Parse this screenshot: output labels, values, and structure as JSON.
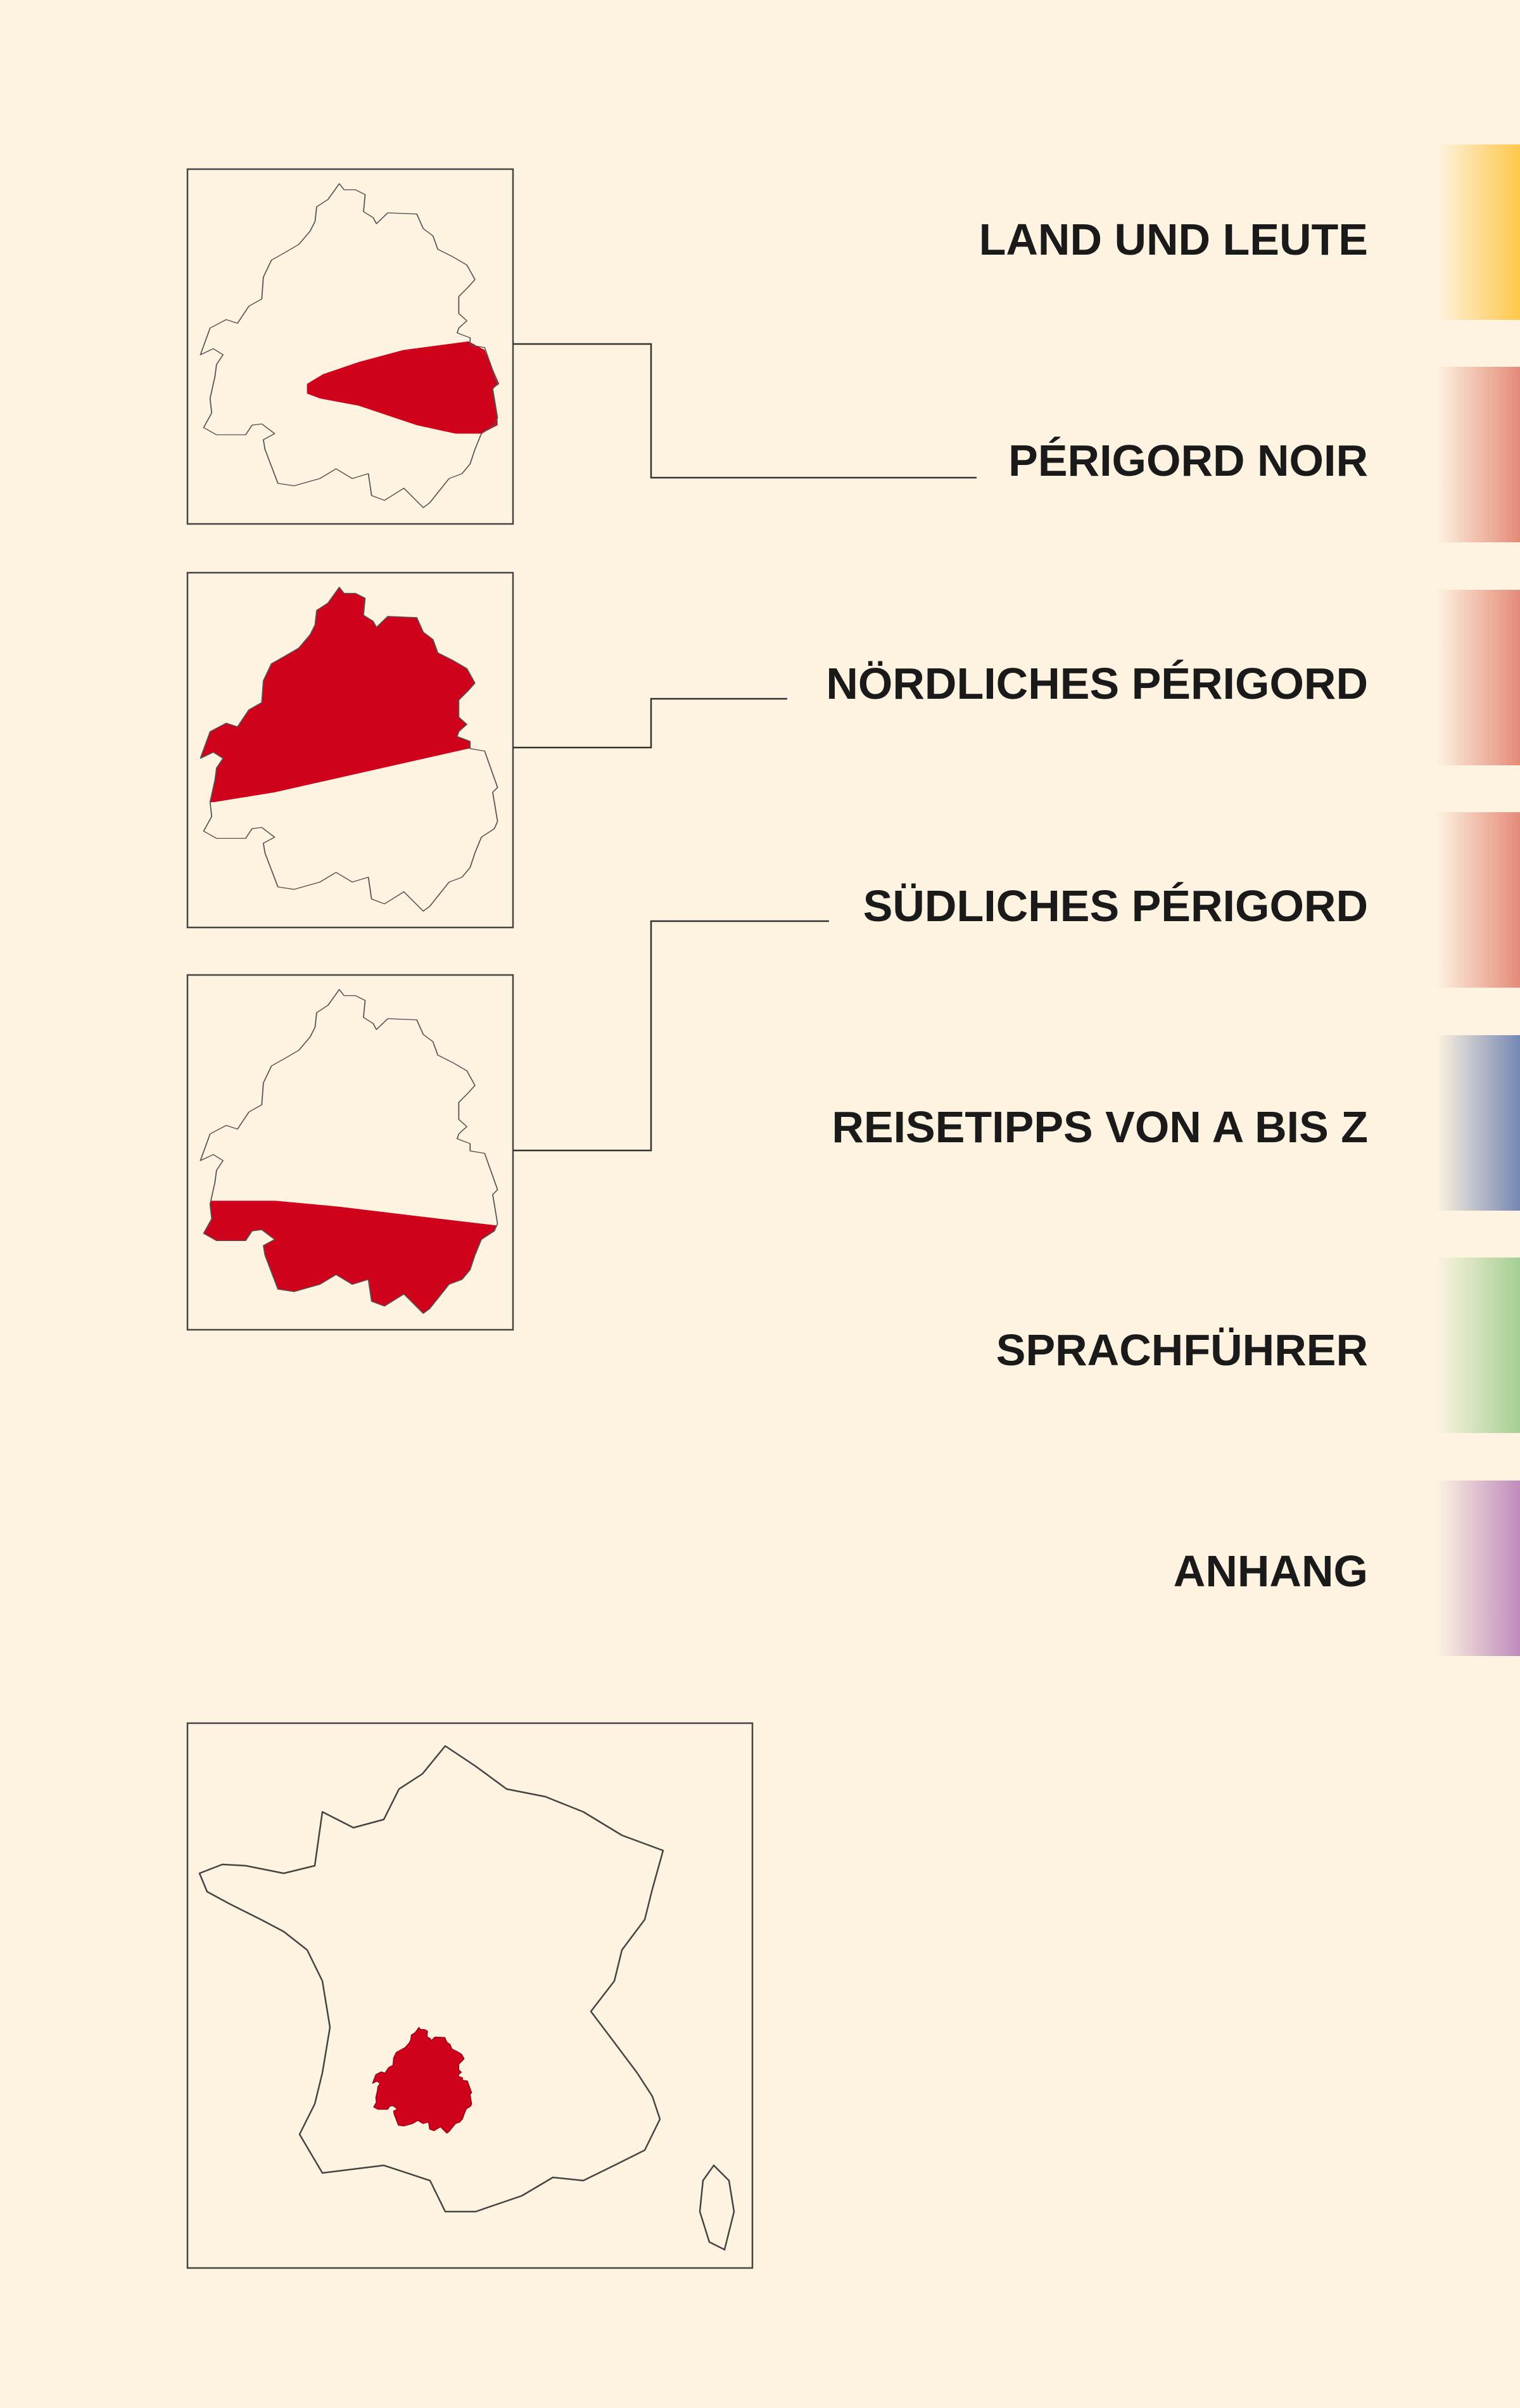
{
  "background_color": "#fdf3e0",
  "highlight_color": "#d0021b",
  "chapters": [
    {
      "label": "LAND UND LEUTE",
      "tab_color": "#fec84a"
    },
    {
      "label": "PÉRIGORD NOIR",
      "tab_color": "#e58a78"
    },
    {
      "label": "NÖRDLICHES PÉRIGORD",
      "tab_color": "#e58a78"
    },
    {
      "label": "SÜDLICHES PÉRIGORD",
      "tab_color": "#e58a78"
    },
    {
      "label": "REISETIPPS VON A BIS Z",
      "tab_color": "#7487b3"
    },
    {
      "label": "SPRACHFÜHRER",
      "tab_color": "#a4cf93"
    },
    {
      "label": "ANHANG",
      "tab_color": "#bf8bbd"
    }
  ],
  "region_maps": [
    {
      "highlighted_region": "Périgord Noir",
      "links_to": "PÉRIGORD NOIR"
    },
    {
      "highlighted_region": "Nördliches Périgord",
      "links_to": "NÖRDLICHES PÉRIGORD"
    },
    {
      "highlighted_region": "Südliches Périgord",
      "links_to": "SÜDLICHES PÉRIGORD"
    }
  ],
  "overview_map": {
    "highlighted_region": "Dordogne in France"
  }
}
